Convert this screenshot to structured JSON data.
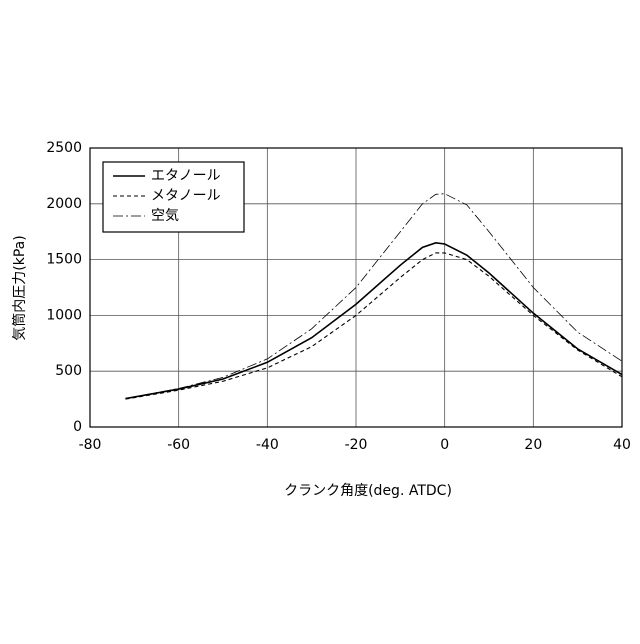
{
  "chart_data": {
    "type": "line",
    "x_label": "クランク角度(deg. ATDC)",
    "y_label": "気筒内圧力(kPa)",
    "x": [
      -72,
      -60,
      -50,
      -40,
      -30,
      -20,
      -10,
      -5,
      -2,
      0,
      5,
      10,
      20,
      30,
      40
    ],
    "series": [
      {
        "name": "エタノール",
        "color": "#000000",
        "dash": "none",
        "width": 1.6,
        "values": [
          255,
          340,
          430,
          580,
          800,
          1100,
          1450,
          1610,
          1650,
          1640,
          1540,
          1380,
          1020,
          700,
          470
        ]
      },
      {
        "name": "メタノール",
        "color": "#000000",
        "dash": "4 3",
        "width": 1.1,
        "values": [
          250,
          330,
          410,
          530,
          720,
          1000,
          1340,
          1500,
          1560,
          1560,
          1500,
          1350,
          1000,
          690,
          450
        ]
      },
      {
        "name": "空気",
        "color": "#000000",
        "dash": "10 3 2 3",
        "width": 0.8,
        "values": [
          255,
          345,
          445,
          610,
          880,
          1250,
          1750,
          2000,
          2085,
          2090,
          1990,
          1750,
          1250,
          850,
          590
        ]
      }
    ],
    "xlim": [
      -80,
      40
    ],
    "xticks": [
      -80,
      -60,
      -40,
      -20,
      0,
      20,
      40
    ],
    "ylim": [
      0,
      2500
    ],
    "yticks": [
      0,
      500,
      1000,
      1500,
      2000,
      2500
    ],
    "grid": true,
    "legend": "upper-left"
  }
}
